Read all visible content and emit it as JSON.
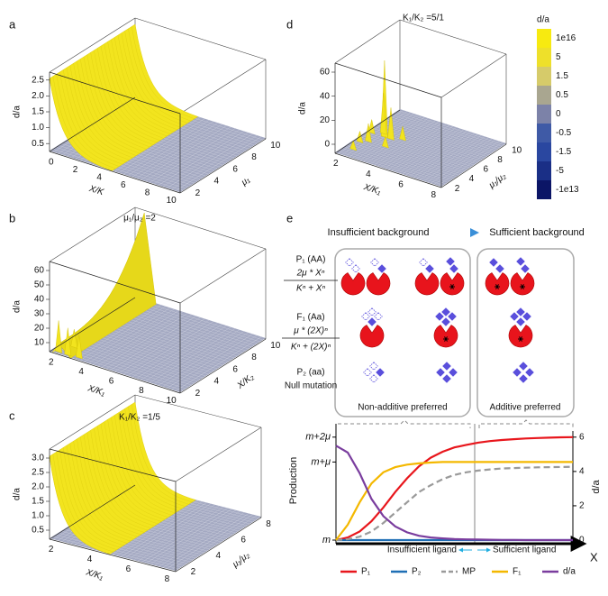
{
  "panels": [
    {
      "label": "a",
      "zlabel": "d/a",
      "zticks": [
        "2.5",
        "2.0",
        "1.5",
        "1.0",
        "0.5"
      ],
      "xticks": [
        "0",
        "2",
        "4",
        "6",
        "8",
        "10"
      ],
      "xlabel": "X/K",
      "yticks": [
        "2",
        "4",
        "6",
        "8",
        "10"
      ],
      "ylabel": "μ₁"
    },
    {
      "label": "b",
      "title": "μ₁/μ₂ =2",
      "zlabel": "d/a",
      "zticks": [
        "60",
        "50",
        "40",
        "30",
        "20",
        "10"
      ],
      "xticks": [
        "2",
        "4",
        "6",
        "8",
        "10"
      ],
      "xlabel": "X/K₁",
      "yticks": [
        "2",
        "4",
        "6",
        "8",
        "10"
      ],
      "ylabel": "X/K₂"
    },
    {
      "label": "c",
      "title": "K₁/K₂ =1/5",
      "zlabel": "d/a",
      "zticks": [
        "3.0",
        "2.5",
        "2.0",
        "1.5",
        "1.0",
        "0.5"
      ],
      "xticks": [
        "2",
        "4",
        "6",
        "8"
      ],
      "xlabel": "X/K₁",
      "yticks": [
        "2",
        "4",
        "6",
        "8"
      ],
      "ylabel": "μ₁/μ₂"
    },
    {
      "label": "d",
      "title": "K₁/K₂ =5/1",
      "zlabel": "d/a",
      "zticks": [
        "60",
        "40",
        "20",
        "0"
      ],
      "xticks": [
        "2",
        "4",
        "6",
        "8"
      ],
      "xlabel": "X/K₁",
      "yticks": [
        "2",
        "4",
        "6",
        "8",
        "10"
      ],
      "ylabel": "μ₁/μ₂"
    }
  ],
  "colorbar": {
    "title": "d/a",
    "labels": [
      "1e16",
      "5",
      "1.5",
      "0.5",
      "0",
      "-0.5",
      "-1.5",
      "-5",
      "-1e13"
    ],
    "colors": [
      "#f7ea10",
      "#eee02a",
      "#d6cb6a",
      "#a9a690",
      "#7c82a8",
      "#3f5aa6",
      "#2a47a0",
      "#1a2f86",
      "#0b1566"
    ]
  },
  "diagram": {
    "label": "e",
    "left_heading": "Insufficient background",
    "right_heading": "Sufficient background",
    "rows": [
      {
        "name": "P₁ (AA)",
        "numerator": "2μ * Xⁿ",
        "denominator": "Kⁿ + Xⁿ"
      },
      {
        "name": "F₁ (Aa)",
        "numerator": "μ * (2X)ⁿ",
        "denominator": "Kⁿ + (2X)ⁿ"
      },
      {
        "name": "P₂ (aa)",
        "note": "Null mutation"
      }
    ],
    "boxes": [
      "Non-additive preferred",
      "Additive preferred"
    ]
  },
  "chart_data": {
    "type": "line",
    "x": [
      0,
      1,
      2,
      3,
      4,
      5,
      6,
      7,
      8,
      9,
      10,
      11,
      12,
      13,
      14,
      15,
      16,
      17,
      18,
      19,
      20
    ],
    "xlim": [
      0,
      20
    ],
    "xlabel": "X",
    "ylabel": "Production",
    "y2label": "d/a",
    "ylim": [
      0,
      6.2
    ],
    "yticks": [
      {
        "value": 0,
        "label": "m"
      },
      {
        "value": 4.55,
        "label": "m+μ"
      },
      {
        "value": 6,
        "label": "m+2μ"
      }
    ],
    "y2lim": [
      0,
      6.2
    ],
    "y2ticks": [
      0,
      2,
      4,
      6
    ],
    "annotations": [
      "Insufficient ligand",
      "Sufficient ligand"
    ],
    "legend": "bottom",
    "series": [
      {
        "name": "P₁",
        "color": "#e8161c",
        "values": [
          0,
          0.15,
          0.5,
          1.1,
          1.9,
          2.8,
          3.6,
          4.3,
          4.8,
          5.15,
          5.4,
          5.55,
          5.68,
          5.77,
          5.83,
          5.88,
          5.92,
          5.95,
          5.97,
          5.99,
          6.0
        ]
      },
      {
        "name": "P₂",
        "color": "#1f6fb5",
        "values": [
          0,
          0,
          0,
          0,
          0,
          0,
          0,
          0,
          0,
          0,
          0,
          0,
          0,
          0,
          0,
          0,
          0,
          0,
          0,
          0,
          0
        ]
      },
      {
        "name": "MP",
        "color": "#9a9a9a",
        "style": "dashed",
        "values": [
          0,
          0.05,
          0.2,
          0.5,
          1.0,
          1.6,
          2.2,
          2.8,
          3.2,
          3.55,
          3.8,
          3.95,
          4.05,
          4.12,
          4.17,
          4.2,
          4.22,
          4.24,
          4.25,
          4.26,
          4.27
        ]
      },
      {
        "name": "F₁",
        "color": "#f4b800",
        "values": [
          0,
          0.9,
          2.2,
          3.3,
          3.95,
          4.25,
          4.4,
          4.47,
          4.52,
          4.55,
          4.55,
          4.55,
          4.55,
          4.55,
          4.55,
          4.55,
          4.55,
          4.55,
          4.55,
          4.55,
          4.55
        ]
      },
      {
        "name": "d/a",
        "color": "#7a3d9e",
        "axis": "y2",
        "values": [
          5.5,
          5.1,
          3.9,
          2.4,
          1.4,
          0.8,
          0.45,
          0.25,
          0.15,
          0.1,
          0.06,
          0.04,
          0.03,
          0.02,
          0.01,
          0.01,
          0,
          0,
          0,
          0,
          0
        ]
      }
    ]
  }
}
